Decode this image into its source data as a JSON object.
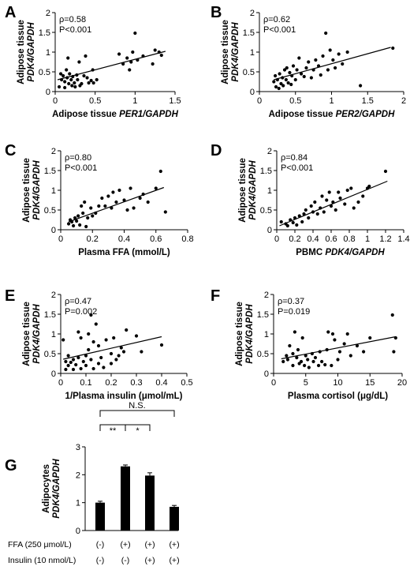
{
  "chart_data": [
    {
      "panel": "A",
      "type": "scatter",
      "rho": "ρ=0.58",
      "p": "P<0.001",
      "ylabel": "Adipose tissue",
      "ylabel2": "PDK4/GAPDH",
      "xlabel": "Adipose tissue ",
      "xlabel_italic": "PER1/GAPDH",
      "xlim": [
        0,
        1.5
      ],
      "ylim": [
        0,
        2
      ],
      "xticks": [
        "0",
        "0.5",
        "1",
        "1.5"
      ],
      "xtick_values": [
        0,
        0.5,
        1,
        1.5
      ],
      "yticks": [
        "0",
        "0.5",
        "1",
        "1.5",
        "2"
      ],
      "ytick_values": [
        0,
        0.5,
        1,
        1.5,
        2
      ],
      "fit": [
        [
          0.03,
          0.3
        ],
        [
          1.38,
          1.02
        ]
      ],
      "points": [
        [
          0.05,
          0.12
        ],
        [
          0.07,
          0.45
        ],
        [
          0.08,
          0.3
        ],
        [
          0.1,
          0.4
        ],
        [
          0.12,
          0.25
        ],
        [
          0.12,
          0.1
        ],
        [
          0.14,
          0.55
        ],
        [
          0.15,
          0.35
        ],
        [
          0.16,
          0.85
        ],
        [
          0.17,
          0.2
        ],
        [
          0.18,
          0.45
        ],
        [
          0.2,
          0.3
        ],
        [
          0.21,
          0.15
        ],
        [
          0.22,
          0.38
        ],
        [
          0.24,
          0.22
        ],
        [
          0.25,
          0.12
        ],
        [
          0.27,
          0.42
        ],
        [
          0.28,
          0.3
        ],
        [
          0.3,
          0.75
        ],
        [
          0.31,
          0.15
        ],
        [
          0.33,
          0.2
        ],
        [
          0.36,
          0.4
        ],
        [
          0.38,
          0.9
        ],
        [
          0.4,
          0.35
        ],
        [
          0.42,
          0.22
        ],
        [
          0.45,
          0.28
        ],
        [
          0.47,
          0.55
        ],
        [
          0.48,
          0.22
        ],
        [
          0.52,
          0.3
        ],
        [
          0.8,
          0.95
        ],
        [
          0.85,
          0.7
        ],
        [
          0.9,
          0.85
        ],
        [
          0.93,
          0.55
        ],
        [
          0.95,
          0.75
        ],
        [
          0.97,
          1.0
        ],
        [
          1.0,
          1.48
        ],
        [
          1.03,
          0.8
        ],
        [
          1.1,
          0.9
        ],
        [
          1.22,
          0.7
        ],
        [
          1.25,
          1.05
        ],
        [
          1.3,
          1.0
        ],
        [
          1.33,
          0.92
        ]
      ]
    },
    {
      "panel": "B",
      "type": "scatter",
      "rho": "ρ=0.62",
      "p": "P<0.001",
      "ylabel": "Adipose tissue",
      "ylabel2": "PDK4/GAPDH",
      "xlabel": "Adipose tissue ",
      "xlabel_italic": "PER2/GAPDH",
      "xlim": [
        0,
        2
      ],
      "ylim": [
        0,
        2
      ],
      "xticks": [
        "0",
        "0.5",
        "1",
        "1.5",
        "2"
      ],
      "xtick_values": [
        0,
        0.5,
        1,
        1.5,
        2
      ],
      "yticks": [
        "0",
        "0.5",
        "1",
        "1.5",
        "2"
      ],
      "ytick_values": [
        0,
        0.5,
        1,
        1.5,
        2
      ],
      "fit": [
        [
          0.2,
          0.3
        ],
        [
          1.82,
          1.12
        ]
      ],
      "points": [
        [
          0.2,
          0.25
        ],
        [
          0.22,
          0.4
        ],
        [
          0.23,
          0.12
        ],
        [
          0.25,
          0.3
        ],
        [
          0.27,
          0.08
        ],
        [
          0.28,
          0.45
        ],
        [
          0.3,
          0.2
        ],
        [
          0.32,
          0.35
        ],
        [
          0.33,
          0.15
        ],
        [
          0.35,
          0.55
        ],
        [
          0.37,
          0.3
        ],
        [
          0.38,
          0.6
        ],
        [
          0.4,
          0.22
        ],
        [
          0.42,
          0.48
        ],
        [
          0.44,
          0.18
        ],
        [
          0.45,
          0.4
        ],
        [
          0.47,
          0.65
        ],
        [
          0.5,
          0.3
        ],
        [
          0.52,
          0.55
        ],
        [
          0.55,
          0.85
        ],
        [
          0.58,
          0.45
        ],
        [
          0.62,
          0.38
        ],
        [
          0.65,
          0.6
        ],
        [
          0.68,
          0.75
        ],
        [
          0.72,
          0.35
        ],
        [
          0.75,
          0.55
        ],
        [
          0.78,
          0.8
        ],
        [
          0.82,
          0.65
        ],
        [
          0.85,
          0.42
        ],
        [
          0.88,
          0.9
        ],
        [
          0.92,
          1.48
        ],
        [
          0.95,
          0.55
        ],
        [
          0.98,
          1.05
        ],
        [
          1.02,
          0.8
        ],
        [
          1.05,
          0.6
        ],
        [
          1.1,
          0.95
        ],
        [
          1.15,
          0.7
        ],
        [
          1.22,
          1.0
        ],
        [
          1.4,
          0.15
        ],
        [
          1.85,
          1.1
        ]
      ]
    },
    {
      "panel": "C",
      "type": "scatter",
      "rho": "ρ=0.80",
      "p": "P<0.001",
      "ylabel": "Adipose tissue",
      "ylabel2": "PDK4/GAPDH",
      "xlabel": "Plasma FFA (mmol/L)",
      "xlabel_italic": "",
      "xlim": [
        0,
        0.8
      ],
      "ylim": [
        0,
        2
      ],
      "xticks": [
        "0",
        "0.2",
        "0.4",
        "0.6",
        "0.8"
      ],
      "xtick_values": [
        0,
        0.2,
        0.4,
        0.6,
        0.8
      ],
      "yticks": [
        "0",
        "0.5",
        "1",
        "1.5",
        "2"
      ],
      "ytick_values": [
        0,
        0.5,
        1,
        1.5,
        2
      ],
      "fit": [
        [
          0.05,
          0.2
        ],
        [
          0.65,
          1.07
        ]
      ],
      "points": [
        [
          0.05,
          0.15
        ],
        [
          0.06,
          0.25
        ],
        [
          0.07,
          0.2
        ],
        [
          0.08,
          0.1
        ],
        [
          0.09,
          0.3
        ],
        [
          0.1,
          0.22
        ],
        [
          0.11,
          0.35
        ],
        [
          0.12,
          0.12
        ],
        [
          0.13,
          0.6
        ],
        [
          0.14,
          0.42
        ],
        [
          0.15,
          0.7
        ],
        [
          0.16,
          0.08
        ],
        [
          0.17,
          0.3
        ],
        [
          0.19,
          0.55
        ],
        [
          0.2,
          0.35
        ],
        [
          0.22,
          0.42
        ],
        [
          0.24,
          0.6
        ],
        [
          0.26,
          0.8
        ],
        [
          0.28,
          0.6
        ],
        [
          0.3,
          0.85
        ],
        [
          0.32,
          0.55
        ],
        [
          0.33,
          0.95
        ],
        [
          0.35,
          0.7
        ],
        [
          0.37,
          1.0
        ],
        [
          0.4,
          0.75
        ],
        [
          0.42,
          0.5
        ],
        [
          0.44,
          1.05
        ],
        [
          0.46,
          0.55
        ],
        [
          0.5,
          0.8
        ],
        [
          0.52,
          0.9
        ],
        [
          0.55,
          0.7
        ],
        [
          0.6,
          1.05
        ],
        [
          0.63,
          1.48
        ],
        [
          0.66,
          0.45
        ]
      ]
    },
    {
      "panel": "D",
      "type": "scatter",
      "rho": "ρ=0.84",
      "p": "P<0.001",
      "ylabel": "Adipose tissue",
      "ylabel2": "PDK4/GAPDH",
      "xlabel": "PBMC ",
      "xlabel_italic": "PDK4/GAPDH",
      "xlim": [
        0,
        1.4
      ],
      "ylim": [
        0,
        2
      ],
      "xticks": [
        "0",
        "0.2",
        "0.4",
        "0.6",
        "0.8",
        "1",
        "1.2",
        "1.4"
      ],
      "xtick_values": [
        0,
        0.2,
        0.4,
        0.6,
        0.8,
        1,
        1.2,
        1.4
      ],
      "yticks": [
        "0",
        "0.5",
        "1",
        "1.5",
        "2"
      ],
      "ytick_values": [
        0,
        0.5,
        1,
        1.5,
        2
      ],
      "fit": [
        [
          0.03,
          0.1
        ],
        [
          1.22,
          1.23
        ]
      ],
      "points": [
        [
          0.05,
          0.2
        ],
        [
          0.1,
          0.15
        ],
        [
          0.12,
          0.1
        ],
        [
          0.15,
          0.25
        ],
        [
          0.18,
          0.18
        ],
        [
          0.2,
          0.3
        ],
        [
          0.22,
          0.12
        ],
        [
          0.25,
          0.35
        ],
        [
          0.28,
          0.2
        ],
        [
          0.3,
          0.4
        ],
        [
          0.32,
          0.5
        ],
        [
          0.35,
          0.3
        ],
        [
          0.38,
          0.6
        ],
        [
          0.4,
          0.45
        ],
        [
          0.42,
          0.7
        ],
        [
          0.45,
          0.4
        ],
        [
          0.48,
          0.55
        ],
        [
          0.5,
          0.85
        ],
        [
          0.52,
          0.45
        ],
        [
          0.55,
          0.75
        ],
        [
          0.58,
          0.95
        ],
        [
          0.6,
          0.6
        ],
        [
          0.62,
          0.7
        ],
        [
          0.65,
          0.5
        ],
        [
          0.68,
          0.95
        ],
        [
          0.7,
          0.8
        ],
        [
          0.75,
          0.65
        ],
        [
          0.78,
          1.0
        ],
        [
          0.82,
          1.05
        ],
        [
          0.85,
          0.55
        ],
        [
          0.9,
          0.7
        ],
        [
          0.95,
          0.85
        ],
        [
          1.0,
          1.05
        ],
        [
          1.02,
          1.1
        ],
        [
          1.2,
          1.48
        ]
      ]
    },
    {
      "panel": "E",
      "type": "scatter",
      "rho": "ρ=0.47",
      "p": "P=0.002",
      "ylabel": "Adipose tissue",
      "ylabel2": "PDK4/GAPDH",
      "xlabel": "1/Plasma insulin (μmol/mL)",
      "xlabel_italic": "",
      "xlim": [
        0,
        0.5
      ],
      "ylim": [
        0,
        2
      ],
      "xticks": [
        "0",
        "0.1",
        "0.2",
        "0.3",
        "0.4",
        "0.5"
      ],
      "xtick_values": [
        0,
        0.1,
        0.2,
        0.3,
        0.4,
        0.5
      ],
      "yticks": [
        "0",
        "0.5",
        "1",
        "1.5",
        "2"
      ],
      "ytick_values": [
        0,
        0.5,
        1,
        1.5,
        2
      ],
      "fit": [
        [
          0.01,
          0.36
        ],
        [
          0.4,
          0.93
        ]
      ],
      "points": [
        [
          0.01,
          0.85
        ],
        [
          0.02,
          0.3
        ],
        [
          0.02,
          0.1
        ],
        [
          0.03,
          0.45
        ],
        [
          0.03,
          0.2
        ],
        [
          0.04,
          0.28
        ],
        [
          0.05,
          0.1
        ],
        [
          0.05,
          0.35
        ],
        [
          0.06,
          0.22
        ],
        [
          0.07,
          1.05
        ],
        [
          0.07,
          0.4
        ],
        [
          0.08,
          0.12
        ],
        [
          0.08,
          0.9
        ],
        [
          0.09,
          0.3
        ],
        [
          0.1,
          0.45
        ],
        [
          0.1,
          0.2
        ],
        [
          0.11,
          1.0
        ],
        [
          0.11,
          0.6
        ],
        [
          0.12,
          0.35
        ],
        [
          0.12,
          1.48
        ],
        [
          0.13,
          0.12
        ],
        [
          0.13,
          0.8
        ],
        [
          0.14,
          1.25
        ],
        [
          0.15,
          0.25
        ],
        [
          0.15,
          0.7
        ],
        [
          0.16,
          0.4
        ],
        [
          0.17,
          0.15
        ],
        [
          0.18,
          0.85
        ],
        [
          0.2,
          0.5
        ],
        [
          0.2,
          0.25
        ],
        [
          0.21,
          0.9
        ],
        [
          0.22,
          0.35
        ],
        [
          0.23,
          0.45
        ],
        [
          0.24,
          0.65
        ],
        [
          0.25,
          0.55
        ],
        [
          0.26,
          1.1
        ],
        [
          0.3,
          0.95
        ],
        [
          0.32,
          0.55
        ],
        [
          0.4,
          0.72
        ]
      ]
    },
    {
      "panel": "F",
      "type": "scatter",
      "rho": "ρ=0.37",
      "p": "P=0.019",
      "ylabel": "Adipose tissue",
      "ylabel2": "PDK4/GAPDH",
      "xlabel": "Plasma cortisol (μg/dL)",
      "xlabel_italic": "",
      "xlim": [
        0,
        20
      ],
      "ylim": [
        0,
        2
      ],
      "xticks": [
        "0",
        "5",
        "10",
        "15",
        "20"
      ],
      "xtick_values": [
        0,
        5,
        10,
        15,
        20
      ],
      "yticks": [
        "0",
        "0.5",
        "1",
        "1.5",
        "2"
      ],
      "ytick_values": [
        0,
        0.5,
        1,
        1.5,
        2
      ],
      "fit": [
        [
          1.2,
          0.37
        ],
        [
          19.0,
          0.93
        ]
      ],
      "points": [
        [
          1.5,
          0.3
        ],
        [
          2,
          0.45
        ],
        [
          2.2,
          0.35
        ],
        [
          2.5,
          0.7
        ],
        [
          3,
          0.2
        ],
        [
          3,
          0.5
        ],
        [
          3.3,
          1.05
        ],
        [
          3.6,
          0.4
        ],
        [
          3.8,
          0.6
        ],
        [
          4,
          0.25
        ],
        [
          4.3,
          0.3
        ],
        [
          4.5,
          0.9
        ],
        [
          4.8,
          0.2
        ],
        [
          5,
          0.45
        ],
        [
          5.3,
          0.35
        ],
        [
          5.5,
          0.15
        ],
        [
          6,
          0.5
        ],
        [
          6.2,
          0.3
        ],
        [
          6.5,
          0.4
        ],
        [
          7,
          0.2
        ],
        [
          7.2,
          0.55
        ],
        [
          7.5,
          0.3
        ],
        [
          8,
          0.22
        ],
        [
          8.3,
          0.6
        ],
        [
          8.5,
          1.05
        ],
        [
          9,
          0.2
        ],
        [
          9.2,
          1.0
        ],
        [
          9.5,
          0.85
        ],
        [
          10,
          0.35
        ],
        [
          10.3,
          0.55
        ],
        [
          11,
          0.75
        ],
        [
          11.5,
          1.0
        ],
        [
          12,
          0.45
        ],
        [
          13,
          0.7
        ],
        [
          14,
          0.55
        ],
        [
          15,
          0.9
        ],
        [
          18.5,
          1.48
        ],
        [
          18.7,
          0.55
        ],
        [
          19,
          0.9
        ]
      ]
    },
    {
      "panel": "G",
      "type": "bar",
      "ylabel": "Adipocytes",
      "ylabel2": "PDK4/GAPDH",
      "ylim": [
        0,
        3
      ],
      "yticks": [
        "0",
        "1",
        "2",
        "3"
      ],
      "ytick_values": [
        0,
        1,
        2,
        3
      ],
      "values": [
        1.0,
        2.3,
        1.97,
        0.85
      ],
      "errors": [
        0.05,
        0.05,
        0.1,
        0.05
      ],
      "comparisons": [
        {
          "from": 0,
          "to": 1,
          "label": "**",
          "level": 1
        },
        {
          "from": 1,
          "to": 2,
          "label": "*",
          "level": 1
        },
        {
          "from": 0,
          "to": 3,
          "label": "N.S.",
          "level": 2
        }
      ],
      "conditions": [
        {
          "label": "FFA (250 μmol/L)",
          "values": [
            "(-)",
            "(+)",
            "(+)",
            "(+)"
          ]
        },
        {
          "label": "Insulin (10 nmol/L)",
          "values": [
            "(-)",
            "(-)",
            "(+)",
            "(+)"
          ]
        }
      ]
    }
  ]
}
